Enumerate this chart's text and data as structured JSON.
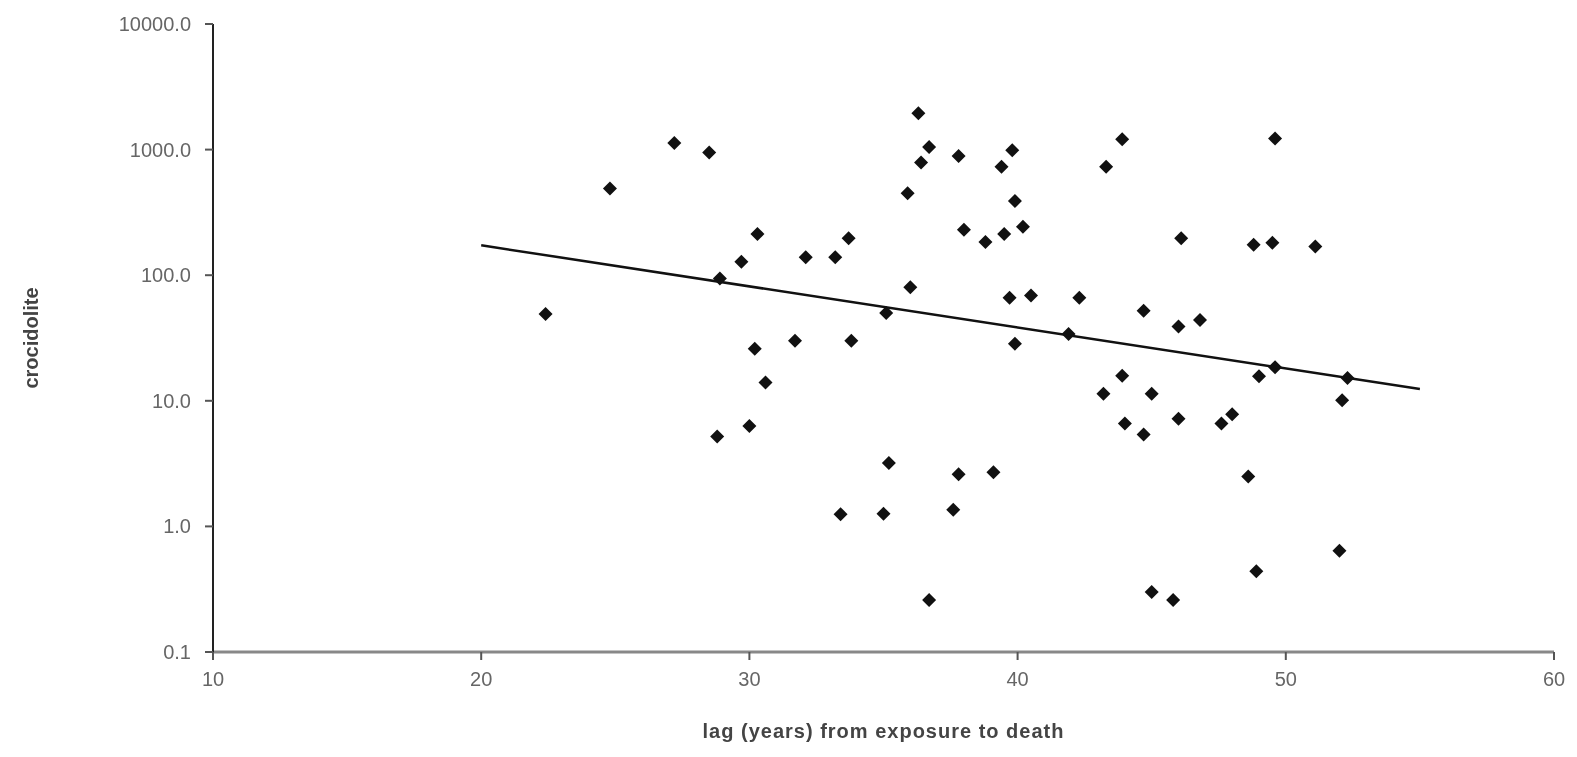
{
  "chart_data": {
    "type": "scatter",
    "xlabel": "lag (years) from exposure to death",
    "ylabel": "crocidolite",
    "log": "y",
    "xlim": [
      10,
      60
    ],
    "xticks": [
      10,
      20,
      30,
      40,
      50,
      60
    ],
    "ylim": [
      0.1,
      10000
    ],
    "yticks": [
      0.1,
      {
        "value": 1,
        "label": "1.0"
      },
      {
        "value": 10,
        "label": "10.0"
      },
      {
        "value": 100,
        "label": "100.0"
      },
      {
        "value": 1000,
        "label": "1000.0"
      },
      {
        "value": 10000,
        "label": "10000.0"
      }
    ],
    "grid": false,
    "marker": "diamond",
    "series": [
      {
        "color": "#111111",
        "x": [
          27.2,
          28.5,
          24.8,
          30.3,
          29.7,
          32.1,
          33.2,
          28.9,
          22.4,
          30.2,
          31.7,
          30.6,
          30.0,
          28.8,
          33.4,
          36.3,
          36.7,
          36.4,
          37.8,
          39.8,
          39.4,
          35.9,
          39.9,
          38.0,
          38.8,
          39.5,
          40.2,
          43.9,
          43.3,
          46.1,
          33.7,
          36.0,
          39.7,
          40.5,
          42.3,
          44.7,
          46.0,
          46.8,
          35.1,
          41.9,
          33.8,
          39.9,
          43.9,
          43.2,
          45.0,
          44.0,
          44.7,
          46.0,
          47.6,
          48.0,
          35.2,
          37.8,
          39.1,
          35.0,
          37.6,
          36.7,
          45.0,
          45.8,
          49.6,
          48.8,
          49.5,
          51.1,
          49.6,
          49.0,
          52.3,
          52.1,
          48.6,
          52.0,
          48.9
        ],
        "values": [
          1130,
          950,
          490,
          213,
          128,
          139,
          139,
          94,
          49,
          26,
          30,
          14,
          6.3,
          5.2,
          1.25,
          1950,
          1050,
          790,
          890,
          990,
          730,
          450,
          390,
          230,
          184,
          213,
          243,
          1210,
          730,
          197,
          197,
          80,
          66,
          69,
          66,
          52,
          39,
          44,
          50,
          34,
          30,
          28.5,
          15.8,
          11.4,
          11.4,
          6.6,
          5.4,
          7.2,
          6.6,
          7.8,
          3.2,
          2.6,
          2.7,
          1.26,
          1.36,
          0.26,
          0.3,
          0.26,
          1225,
          175,
          181,
          169,
          18.5,
          15.7,
          15.2,
          10.1,
          2.5,
          0.64,
          0.44
        ]
      },
      {
        "type": "line",
        "color": "#111111",
        "x": [
          20,
          55
        ],
        "values": [
          173,
          12.4
        ],
        "line_style": "solid",
        "marker": "none"
      }
    ]
  }
}
